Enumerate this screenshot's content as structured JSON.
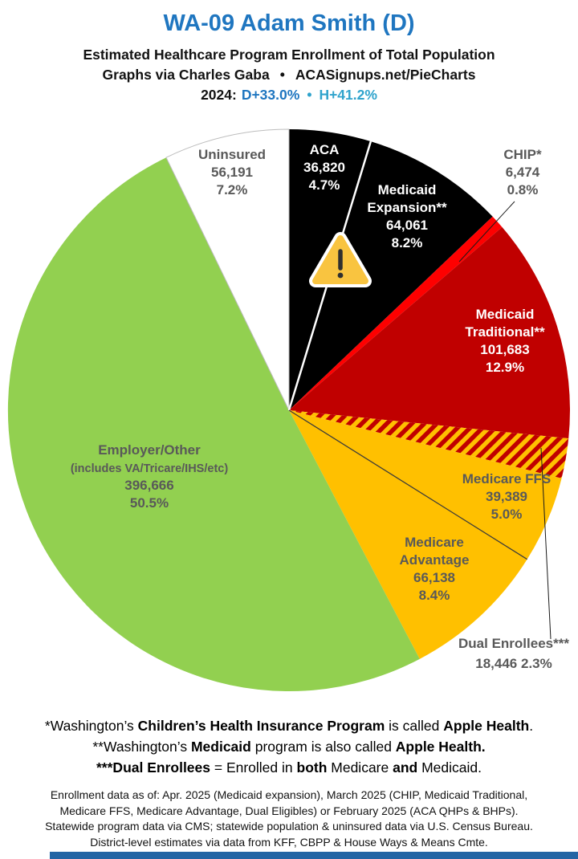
{
  "header": {
    "title": "WA-09 Adam Smith (D)",
    "subtitle": "Estimated Healthcare Program Enrollment of Total Population",
    "attribution": "Graphs via Charles Gaba",
    "bullet": "•",
    "site": "ACASignups.net/PieCharts",
    "year_label": "2024:",
    "dem_margin": "D+33.0%",
    "harris_margin": "H+41.2%"
  },
  "colors": {
    "title_blue": "#1F76C0",
    "harris_teal": "#2FA3CC",
    "label_gray": "#595959",
    "footer_bar": "#2365A4",
    "hatch_bg": "#FFC000",
    "hatch_stripe": "#C00000",
    "warning_fill": "#F9C440",
    "warning_glyph": "#2F2F2F"
  },
  "chart_data": {
    "type": "pie",
    "title": "WA-09 Adam Smith (D) — Estimated Healthcare Program Enrollment of Total Population",
    "units": "people",
    "start_angle_deg": 0,
    "direction": "clockwise",
    "legend_position": "labels-on-slices",
    "slices": [
      {
        "id": "aca",
        "label": "ACA",
        "value": 36820,
        "value_display": "36,820",
        "pct": 4.7,
        "pct_display": "4.7%",
        "color": "#000000",
        "text_color": "#FFFFFF",
        "display_lines": [
          "ACA",
          "36,820",
          "4.7%"
        ]
      },
      {
        "id": "medicaid-expansion",
        "label": "Medicaid Expansion**",
        "value": 64061,
        "value_display": "64,061",
        "pct": 8.2,
        "pct_display": "8.2%",
        "color": "#000000",
        "text_color": "#FFFFFF",
        "display_lines": [
          "Medicaid",
          "Expansion**",
          "64,061",
          "8.2%"
        ]
      },
      {
        "id": "chip",
        "label": "CHIP*",
        "value": 6474,
        "value_display": "6,474",
        "pct": 0.8,
        "pct_display": "0.8%",
        "color": "#FE0000",
        "text_color": "#595959",
        "display_lines": [
          "CHIP*",
          "6,474",
          "0.8%"
        ]
      },
      {
        "id": "medicaid-traditional",
        "label": "Medicaid Traditional**",
        "value": 101683,
        "value_display": "101,683",
        "pct": 12.9,
        "pct_display": "12.9%",
        "color": "#C00000",
        "text_color": "#FFFFFF",
        "display_lines": [
          "Medicaid",
          "Traditional**",
          "101,683",
          "12.9%"
        ]
      },
      {
        "id": "dual-enrollees",
        "label": "Dual Enrollees***",
        "value": 18446,
        "value_display": "18,446",
        "pct": 2.3,
        "pct_display": "2.3%",
        "color": "hatch",
        "text_color": "#595959",
        "display_lines": [
          "Dual Enrollees***",
          "18,446 2.3%"
        ]
      },
      {
        "id": "medicare-ffs",
        "label": "Medicare FFS",
        "value": 39389,
        "value_display": "39,389",
        "pct": 5.0,
        "pct_display": "5.0%",
        "color": "#FFC000",
        "text_color": "#595959",
        "display_lines": [
          "Medicare FFS",
          "39,389",
          "5.0%"
        ]
      },
      {
        "id": "medicare-advantage",
        "label": "Medicare Advantage",
        "value": 66138,
        "value_display": "66,138",
        "pct": 8.4,
        "pct_display": "8.4%",
        "color": "#FFC000",
        "text_color": "#595959",
        "display_lines": [
          "Medicare",
          "Advantage",
          "66,138",
          "8.4%"
        ]
      },
      {
        "id": "employer-other",
        "label": "Employer/Other (includes VA/Tricare/IHS/etc)",
        "value": 396666,
        "value_display": "396,666",
        "pct": 50.5,
        "pct_display": "50.5%",
        "color": "#92D050",
        "text_color": "#595959",
        "display_lines": [
          "Employer/Other",
          "(includes VA/Tricare/IHS/etc)",
          "396,666",
          "50.5%"
        ]
      },
      {
        "id": "uninsured",
        "label": "Uninsured",
        "value": 56191,
        "value_display": "56,191",
        "pct": 7.2,
        "pct_display": "7.2%",
        "color": "#FFFFFF",
        "text_color": "#595959",
        "display_lines": [
          "Uninsured",
          "56,191",
          "7.2%"
        ]
      }
    ]
  },
  "footnotes": [
    [
      {
        "t": "*Washington’s ",
        "b": false
      },
      {
        "t": "Children’s Health Insurance Program",
        "b": true
      },
      {
        "t": " is called ",
        "b": false
      },
      {
        "t": "Apple Health",
        "b": true
      },
      {
        "t": ".",
        "b": false
      }
    ],
    [
      {
        "t": "**Washington’s ",
        "b": false
      },
      {
        "t": "Medicaid",
        "b": true
      },
      {
        "t": " program is also called ",
        "b": false
      },
      {
        "t": "Apple Health.",
        "b": true
      }
    ],
    [
      {
        "t": "***Dual Enrollees",
        "b": true
      },
      {
        "t": " = Enrolled in ",
        "b": false
      },
      {
        "t": "both",
        "b": true
      },
      {
        "t": " Medicare ",
        "b": false
      },
      {
        "t": "and",
        "b": true
      },
      {
        "t": " Medicaid.",
        "b": false
      }
    ]
  ],
  "fine_print": [
    "Enrollment data as of: Apr. 2025 (Medicaid expansion), March 2025 (CHIP, Medicaid Traditional,",
    "Medicare FFS, Medicare Advantage, Dual Eligibles) or February 2025 (ACA QHPs & BHPs).",
    "Statewide program data via CMS; statewide population & uninsured data via U.S. Census Bureau.",
    "District-level estimates via data from KFF, CBPP & House Ways & Means Cmte."
  ]
}
